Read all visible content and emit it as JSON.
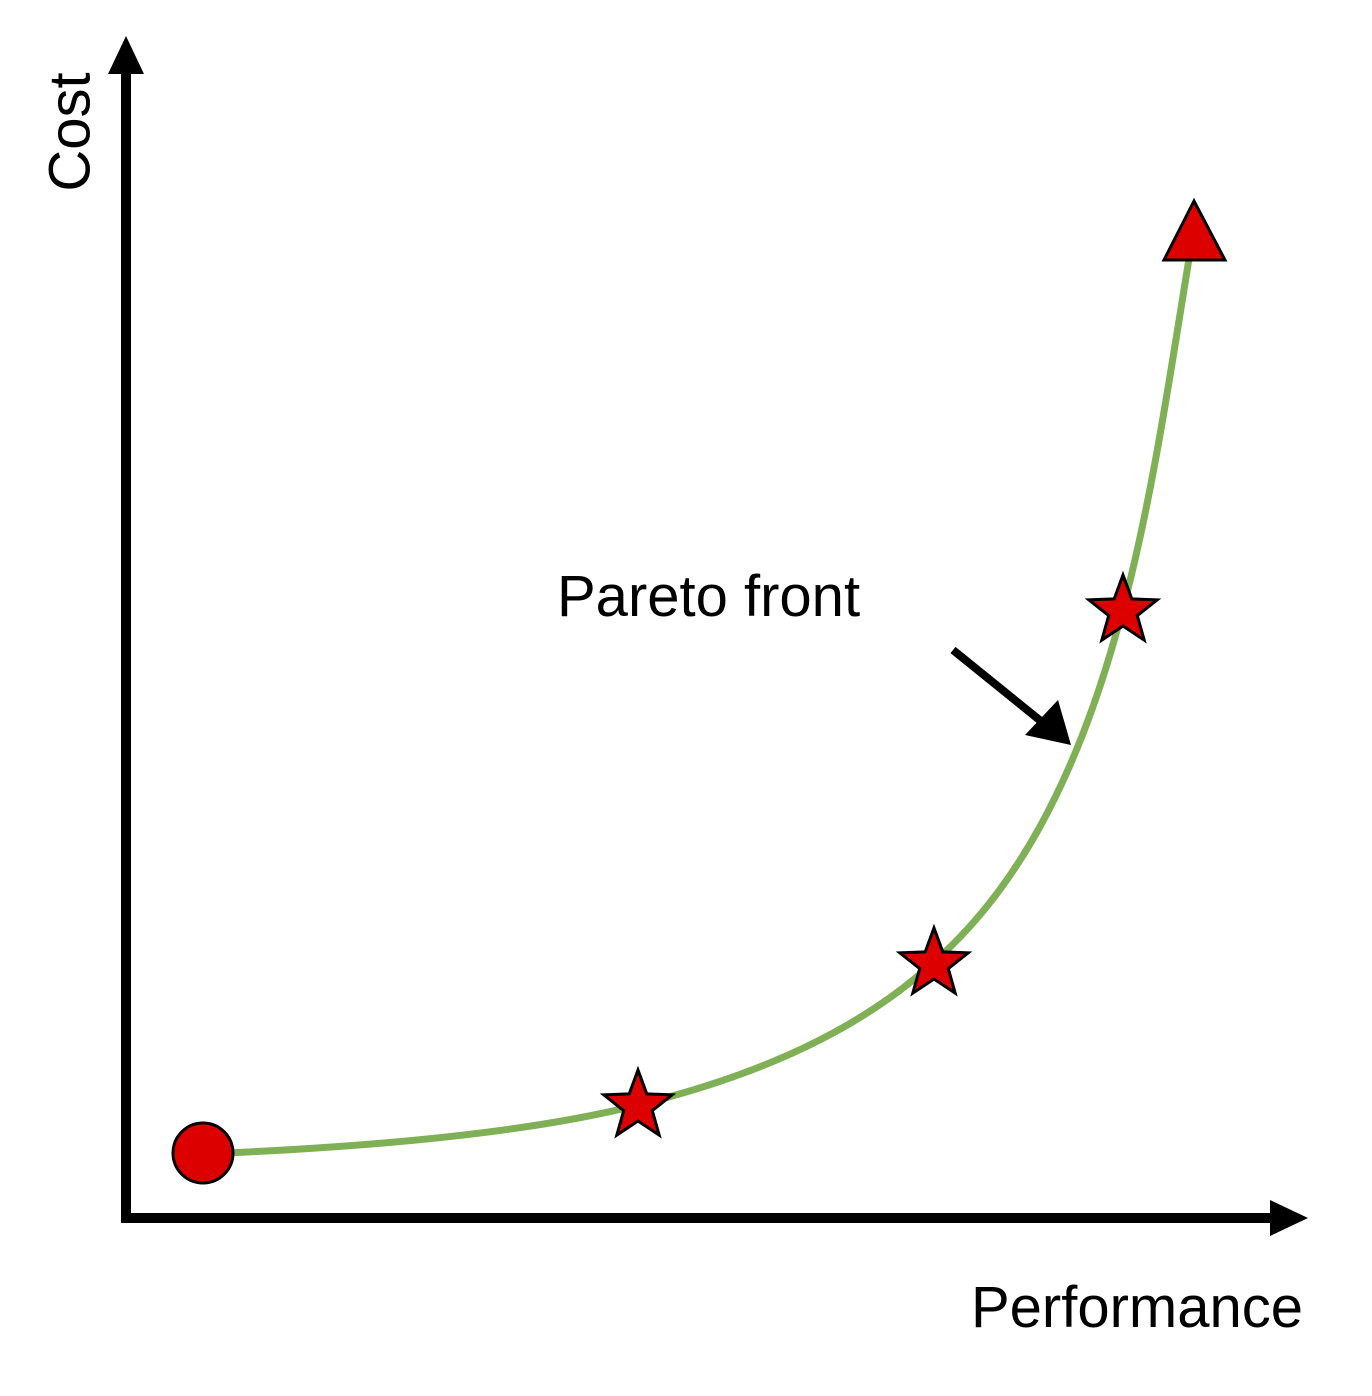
{
  "axes": {
    "x_label": "Performance",
    "y_label": "Cost"
  },
  "annotation": {
    "text": "Pareto front"
  },
  "colors": {
    "curve": "#7fb055",
    "marker_fill": "#dd0000",
    "marker_stroke": "#000000",
    "axis": "#000000"
  },
  "markers": [
    {
      "shape": "circle"
    },
    {
      "shape": "star"
    },
    {
      "shape": "star"
    },
    {
      "shape": "star"
    },
    {
      "shape": "triangle"
    }
  ]
}
